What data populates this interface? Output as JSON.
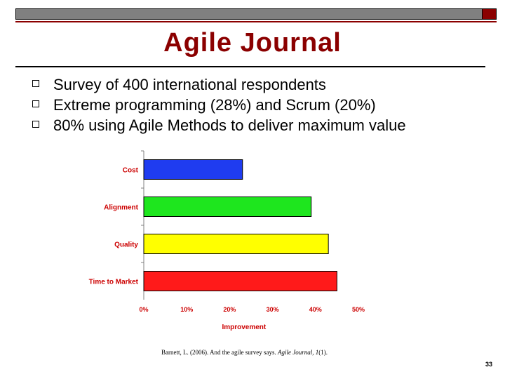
{
  "slide": {
    "title": "Agile Journal",
    "bullets": [
      "Survey of 400 international respondents",
      "Extreme programming (28%) and Scrum (20%)",
      "80% using Agile Methods to deliver maximum value"
    ],
    "citation": {
      "prefix": "Barnett, L. (2006). And the agile survey says. ",
      "journal": "Agile Journal, ",
      "volume": "1",
      "suffix": "(1)."
    },
    "page_number": "33"
  },
  "colors": {
    "accent": "#8b0000",
    "label": "#cc0000"
  },
  "chart_data": {
    "type": "bar",
    "orientation": "horizontal",
    "categories": [
      "Cost",
      "Alignment",
      "Quality",
      "Time to Market"
    ],
    "values": [
      23,
      39,
      43,
      45
    ],
    "bar_colors": [
      "#1f3cf0",
      "#1ee61e",
      "#ffff00",
      "#ff1a1a"
    ],
    "xlabel": "Improvement",
    "xlim": [
      0,
      50
    ],
    "xticks": [
      "0%",
      "10%",
      "20%",
      "30%",
      "40%",
      "50%"
    ],
    "grid": false
  }
}
